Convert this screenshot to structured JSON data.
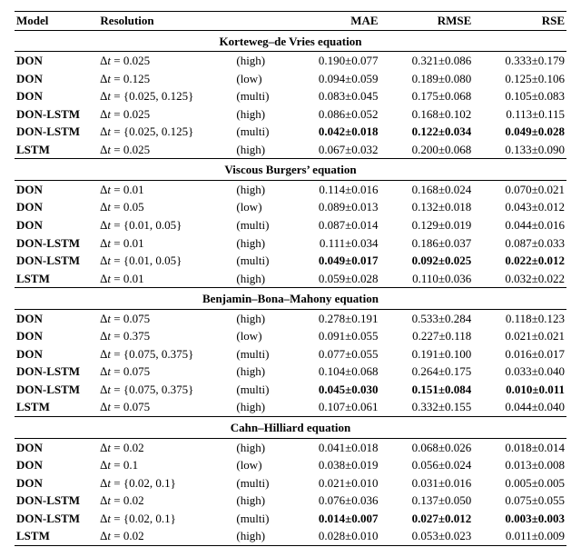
{
  "columns": {
    "model": "Model",
    "resolution": "Resolution",
    "mae": "MAE",
    "rmse": "RMSE",
    "rse": "RSE"
  },
  "style": {
    "font_family": "Times New Roman",
    "font_size_pt": 10,
    "border_color": "#000000",
    "background": "#ffffff"
  },
  "sections": [
    {
      "title": "Korteweg–de Vries equation",
      "rows": [
        {
          "model": "DON",
          "dt": "Δt = 0.025",
          "tag": "(high)",
          "mae": "0.190±0.077",
          "rmse": "0.321±0.086",
          "rse": "0.333±0.179",
          "bold": false
        },
        {
          "model": "DON",
          "dt": "Δt = 0.125",
          "tag": "(low)",
          "mae": "0.094±0.059",
          "rmse": "0.189±0.080",
          "rse": "0.125±0.106",
          "bold": false
        },
        {
          "model": "DON",
          "dt": "Δt = {0.025, 0.125}",
          "tag": "(multi)",
          "mae": "0.083±0.045",
          "rmse": "0.175±0.068",
          "rse": "0.105±0.083",
          "bold": false
        },
        {
          "model": "DON-LSTM",
          "dt": "Δt = 0.025",
          "tag": "(high)",
          "mae": "0.086±0.052",
          "rmse": "0.168±0.102",
          "rse": "0.113±0.115",
          "bold": false
        },
        {
          "model": "DON-LSTM",
          "dt": "Δt = {0.025, 0.125}",
          "tag": "(multi)",
          "mae": "0.042±0.018",
          "rmse": "0.122±0.034",
          "rse": "0.049±0.028",
          "bold": true
        },
        {
          "model": "LSTM",
          "dt": "Δt = 0.025",
          "tag": "(high)",
          "mae": "0.067±0.032",
          "rmse": "0.200±0.068",
          "rse": "0.133±0.090",
          "bold": false
        }
      ]
    },
    {
      "title": "Viscous Burgers’ equation",
      "rows": [
        {
          "model": "DON",
          "dt": "Δt = 0.01",
          "tag": "(high)",
          "mae": "0.114±0.016",
          "rmse": "0.168±0.024",
          "rse": "0.070±0.021",
          "bold": false
        },
        {
          "model": "DON",
          "dt": "Δt = 0.05",
          "tag": "(low)",
          "mae": "0.089±0.013",
          "rmse": "0.132±0.018",
          "rse": "0.043±0.012",
          "bold": false
        },
        {
          "model": "DON",
          "dt": "Δt = {0.01, 0.05}",
          "tag": "(multi)",
          "mae": "0.087±0.014",
          "rmse": "0.129±0.019",
          "rse": "0.044±0.016",
          "bold": false
        },
        {
          "model": "DON-LSTM",
          "dt": "Δt = 0.01",
          "tag": "(high)",
          "mae": "0.111±0.034",
          "rmse": "0.186±0.037",
          "rse": "0.087±0.033",
          "bold": false
        },
        {
          "model": "DON-LSTM",
          "dt": "Δt = {0.01, 0.05}",
          "tag": "(multi)",
          "mae": "0.049±0.017",
          "rmse": "0.092±0.025",
          "rse": "0.022±0.012",
          "bold": true
        },
        {
          "model": "LSTM",
          "dt": "Δt = 0.01",
          "tag": "(high)",
          "mae": "0.059±0.028",
          "rmse": "0.110±0.036",
          "rse": "0.032±0.022",
          "bold": false
        }
      ]
    },
    {
      "title": "Benjamin–Bona–Mahony equation",
      "rows": [
        {
          "model": "DON",
          "dt": "Δt = 0.075",
          "tag": "(high)",
          "mae": "0.278±0.191",
          "rmse": "0.533±0.284",
          "rse": "0.118±0.123",
          "bold": false
        },
        {
          "model": "DON",
          "dt": "Δt = 0.375",
          "tag": "(low)",
          "mae": "0.091±0.055",
          "rmse": "0.227±0.118",
          "rse": "0.021±0.021",
          "bold": false
        },
        {
          "model": "DON",
          "dt": "Δt = {0.075, 0.375}",
          "tag": "(multi)",
          "mae": "0.077±0.055",
          "rmse": "0.191±0.100",
          "rse": "0.016±0.017",
          "bold": false
        },
        {
          "model": "DON-LSTM",
          "dt": "Δt = 0.075",
          "tag": "(high)",
          "mae": "0.104±0.068",
          "rmse": "0.264±0.175",
          "rse": "0.033±0.040",
          "bold": false
        },
        {
          "model": "DON-LSTM",
          "dt": "Δt = {0.075, 0.375}",
          "tag": "(multi)",
          "mae": "0.045±0.030",
          "rmse": "0.151±0.084",
          "rse": "0.010±0.011",
          "bold": true
        },
        {
          "model": "LSTM",
          "dt": "Δt = 0.075",
          "tag": "(high)",
          "mae": "0.107±0.061",
          "rmse": "0.332±0.155",
          "rse": "0.044±0.040",
          "bold": false
        }
      ]
    },
    {
      "title": "Cahn–Hilliard equation",
      "rows": [
        {
          "model": "DON",
          "dt": "Δt = 0.02",
          "tag": "(high)",
          "mae": "0.041±0.018",
          "rmse": "0.068±0.026",
          "rse": "0.018±0.014",
          "bold": false
        },
        {
          "model": "DON",
          "dt": "Δt = 0.1",
          "tag": "(low)",
          "mae": "0.038±0.019",
          "rmse": "0.056±0.024",
          "rse": "0.013±0.008",
          "bold": false
        },
        {
          "model": "DON",
          "dt": "Δt = {0.02, 0.1}",
          "tag": "(multi)",
          "mae": "0.021±0.010",
          "rmse": "0.031±0.016",
          "rse": "0.005±0.005",
          "bold": false
        },
        {
          "model": "DON-LSTM",
          "dt": "Δt = 0.02",
          "tag": "(high)",
          "mae": "0.076±0.036",
          "rmse": "0.137±0.050",
          "rse": "0.075±0.055",
          "bold": false
        },
        {
          "model": "DON-LSTM",
          "dt": "Δt = {0.02, 0.1}",
          "tag": "(multi)",
          "mae": "0.014±0.007",
          "rmse": "0.027±0.012",
          "rse": "0.003±0.003",
          "bold": true
        },
        {
          "model": "LSTM",
          "dt": "Δt = 0.02",
          "tag": "(high)",
          "mae": "0.028±0.010",
          "rmse": "0.053±0.023",
          "rse": "0.011±0.009",
          "bold": false
        }
      ]
    }
  ]
}
